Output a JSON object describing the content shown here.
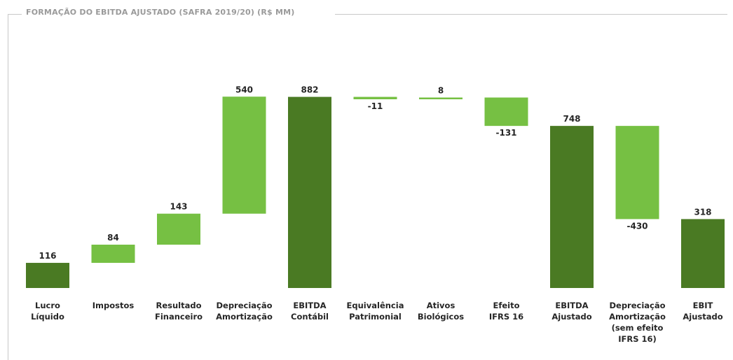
{
  "chart_data": {
    "type": "bar",
    "subtype": "waterfall",
    "title": "FORMAÇÃO DO EBITDA AJUSTADO (SAFRA 2019/20) (R$ MM)",
    "xlabel": "",
    "ylabel": "",
    "grid": false,
    "legend": "none",
    "colors": {
      "total": "#4a7a23",
      "delta": "#76c043"
    },
    "categories": [
      [
        "Lucro",
        "Líquido"
      ],
      [
        "Impostos"
      ],
      [
        "Resultado",
        "Financeiro"
      ],
      [
        "Depreciação",
        "Amortização"
      ],
      [
        "EBITDA",
        "Contábil"
      ],
      [
        "Equivalência",
        "Patrimonial"
      ],
      [
        "Ativos",
        "Biológicos"
      ],
      [
        "Efeito",
        "IFRS 16"
      ],
      [
        "EBITDA",
        "Ajustado"
      ],
      [
        "Depreciação",
        "Amortização",
        "(sem efeito",
        "IFRS 16)"
      ],
      [
        "EBIT",
        "Ajustado"
      ]
    ],
    "values": [
      116,
      84,
      143,
      540,
      882,
      -11,
      8,
      -131,
      748,
      -430,
      318
    ],
    "labels": [
      "116",
      "84",
      "143",
      "540",
      "882",
      "-11",
      "8",
      "-131",
      "748",
      "-430",
      "318"
    ],
    "kinds": [
      "total",
      "delta",
      "delta",
      "delta",
      "total",
      "delta",
      "delta",
      "delta",
      "total",
      "delta",
      "total"
    ]
  }
}
